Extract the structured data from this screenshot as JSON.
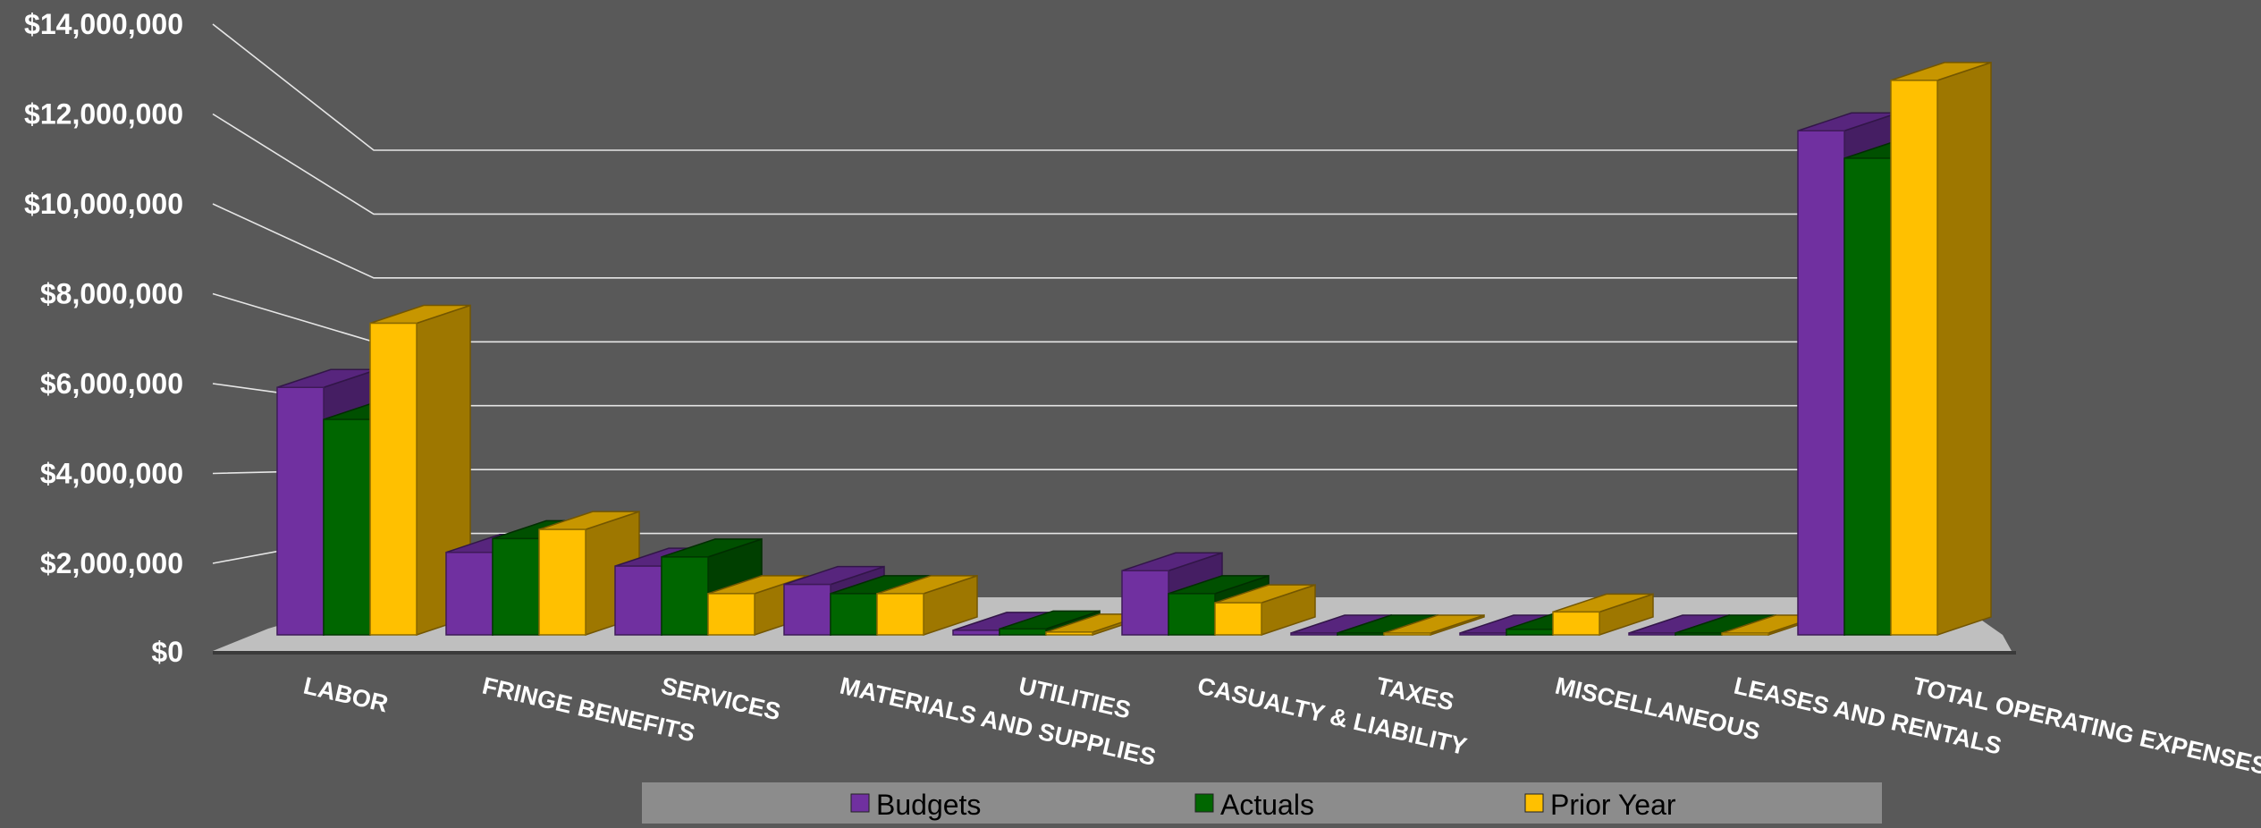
{
  "chart_data": {
    "type": "bar",
    "style": "3d-clustered-column",
    "categories": [
      "LABOR",
      "FRINGE BENEFITS",
      "SERVICES",
      "MATERIALS AND SUPPLIES",
      "UTILITIES",
      "CASUALTY & LIABILITY",
      "TAXES",
      "MISCELLANEOUS",
      "LEASES AND RENTALS",
      "TOTAL OPERATING EXPENSES"
    ],
    "series": [
      {
        "name": "Budgets",
        "color": "#7030A0",
        "values": [
          5400000,
          1800000,
          1500000,
          1100000,
          100000,
          1400000,
          20000,
          30000,
          10000,
          11000000
        ]
      },
      {
        "name": "Actuals",
        "color": "#006600",
        "values": [
          4700000,
          2100000,
          1700000,
          900000,
          130000,
          900000,
          20000,
          120000,
          10000,
          10400000
        ]
      },
      {
        "name": "Prior Year",
        "color": "#FFC000",
        "values": [
          6800000,
          2300000,
          900000,
          900000,
          60000,
          700000,
          30000,
          500000,
          10000,
          12100000
        ]
      }
    ],
    "y_ticks": [
      "$0",
      "$2,000,000",
      "$4,000,000",
      "$6,000,000",
      "$8,000,000",
      "$10,000,000",
      "$12,000,000",
      "$14,000,000"
    ],
    "ylim": [
      0,
      14000000
    ],
    "grid": true,
    "legend_position": "bottom",
    "background": "#595959"
  }
}
